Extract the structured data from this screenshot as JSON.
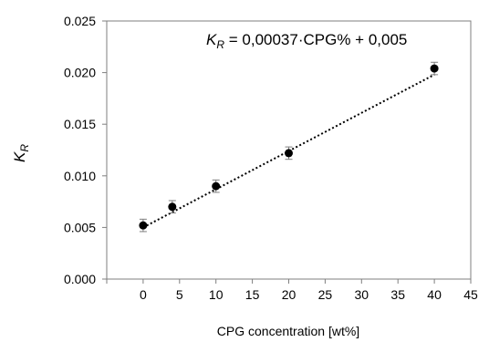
{
  "chart_data": {
    "type": "scatter",
    "xlabel": "CPG concentration [wt%]",
    "ylabel": {
      "main": "K",
      "sub": "R"
    },
    "annotation": {
      "lhs_main": "K",
      "lhs_sub": "R",
      "rhs": " = 0,00037·CPG% + 0,005"
    },
    "xlim": [
      -5,
      45
    ],
    "ylim": [
      0,
      0.025
    ],
    "xticks": [
      0,
      5,
      10,
      15,
      20,
      25,
      30,
      35,
      40,
      45
    ],
    "xtick_labels": [
      "0",
      "5",
      "10",
      "15",
      "20",
      "25",
      "30",
      "35",
      "40",
      "45"
    ],
    "yticks": [
      0,
      0.005,
      0.01,
      0.015,
      0.02,
      0.025
    ],
    "ytick_labels": [
      "0.000",
      "0.005",
      "0.010",
      "0.015",
      "0.020",
      "0.025"
    ],
    "grid": false,
    "series": [
      {
        "x": [
          0,
          4,
          10,
          20,
          40
        ],
        "y": [
          0.0052,
          0.007,
          0.009,
          0.0122,
          0.0204
        ],
        "error": [
          0.0006,
          0.0006,
          0.0006,
          0.0006,
          0.0006
        ]
      }
    ],
    "trendline": {
      "slope": 0.00037,
      "intercept": 0.005,
      "x_range": [
        0,
        40
      ]
    }
  }
}
